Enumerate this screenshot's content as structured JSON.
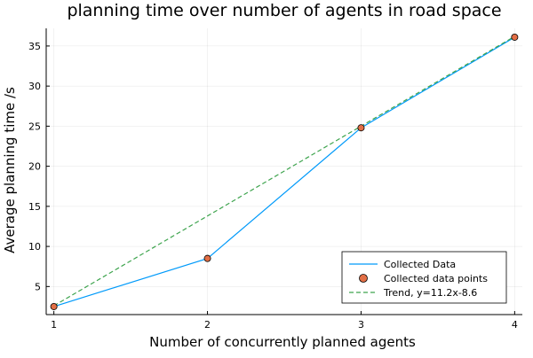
{
  "chart_data": {
    "type": "line",
    "title": "planning time over number of agents in road space",
    "xlabel": "Number of concurrently planned agents",
    "ylabel": "Average planning time /s",
    "xlim": [
      0.95,
      4.05
    ],
    "ylim": [
      1.5,
      37.2
    ],
    "xticks": [
      1,
      2,
      3,
      4
    ],
    "yticks": [
      5,
      10,
      15,
      20,
      25,
      30,
      35
    ],
    "grid": true,
    "legend_position": "bottom-right",
    "series": [
      {
        "name": "Collected Data",
        "style": "line",
        "color": "#009AFA",
        "x": [
          1,
          2,
          3,
          4
        ],
        "y": [
          2.5,
          8.5,
          24.8,
          36.1
        ]
      },
      {
        "name": "Collected data points",
        "style": "scatter",
        "color": "#E26F46",
        "x": [
          1,
          2,
          3,
          4
        ],
        "y": [
          2.5,
          8.5,
          24.8,
          36.1
        ]
      },
      {
        "name": "Trend, y=11.2x-8.6",
        "style": "dashed-line",
        "color": "#3EA44E",
        "x": [
          1,
          4
        ],
        "y": [
          2.6,
          36.2
        ]
      }
    ]
  }
}
